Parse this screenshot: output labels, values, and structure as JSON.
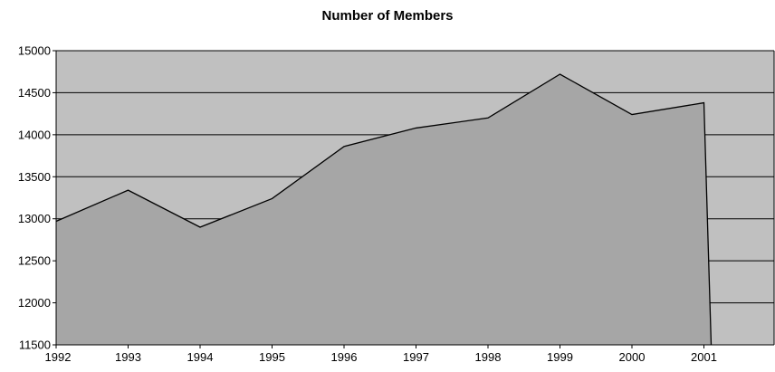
{
  "chart_data": {
    "type": "area",
    "title": "Number of Members",
    "xlabel": "",
    "ylabel": "",
    "x": [
      "1992",
      "1993",
      "1994",
      "1995",
      "1996",
      "1997",
      "1998",
      "1999",
      "2000",
      "2001"
    ],
    "series": [
      {
        "values": [
          12970,
          13340,
          12900,
          13240,
          13860,
          14080,
          14200,
          14720,
          14240,
          14380
        ]
      }
    ],
    "drop_after_last": 11500,
    "ylim": [
      11500,
      15000
    ],
    "yticks": [
      11500,
      12000,
      12500,
      13000,
      13500,
      14000,
      14500,
      15000
    ],
    "ytick_labels": [
      "11500",
      "12000",
      "12500",
      "13000",
      "13500",
      "14000",
      "14500",
      "15000"
    ],
    "grid": true,
    "legend": "none",
    "colors": {
      "plot_background": "#c0c0c0",
      "area_fill": "#a6a6a6",
      "line": "#000000",
      "gridline": "#000000"
    }
  }
}
